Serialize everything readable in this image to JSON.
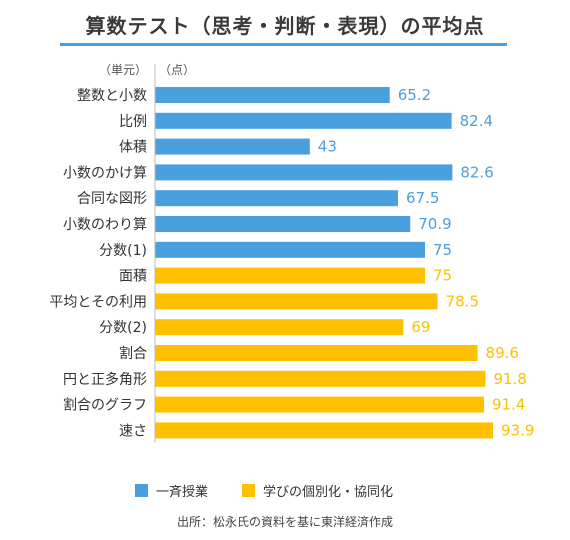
{
  "colors": {
    "group1": "#4a9fde",
    "group2": "#ffc000",
    "rule": "#4a9fde"
  },
  "chart_data": {
    "type": "bar",
    "orientation": "horizontal",
    "title": "算数テスト（思考・判断・表現）の平均点",
    "ylabel": "（単元）",
    "xlabel": "（点）",
    "xlim": [
      0,
      100
    ],
    "grid": false,
    "legend_position": "bottom",
    "categories": [
      "整数と小数",
      "比例",
      "体積",
      "小数のかけ算",
      "合同な図形",
      "小数のわり算",
      "分数(1)",
      "面積",
      "平均とその利用",
      "分数(2)",
      "割合",
      "円と正多角形",
      "割合のグラフ",
      "速さ"
    ],
    "values": [
      65.2,
      82.4,
      43,
      82.6,
      67.5,
      70.9,
      75,
      75,
      78.5,
      69,
      89.6,
      91.8,
      91.4,
      93.9
    ],
    "value_labels": [
      "65.2",
      "82.4",
      "43",
      "82.6",
      "67.5",
      "70.9",
      "75",
      "75",
      "78.5",
      "69",
      "89.6",
      "91.8",
      "91.4",
      "93.9"
    ],
    "groups": [
      0,
      0,
      0,
      0,
      0,
      0,
      0,
      1,
      1,
      1,
      1,
      1,
      1,
      1
    ],
    "series": [
      {
        "name": "一斉授業",
        "color": "#4a9fde"
      },
      {
        "name": "学びの個別化・協同化",
        "color": "#ffc000"
      }
    ]
  },
  "source": "出所：松永氏の資料を基に東洋経済作成"
}
